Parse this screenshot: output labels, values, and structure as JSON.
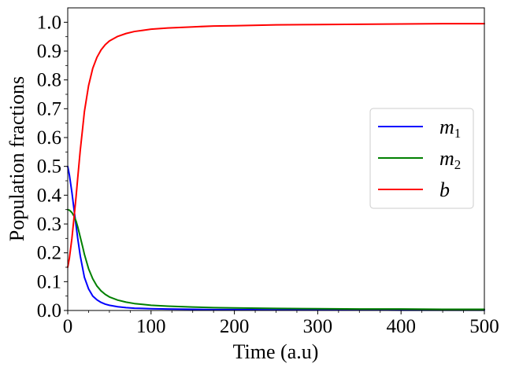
{
  "chart_data": {
    "type": "line",
    "title": "",
    "xlabel": "Time (a.u)",
    "ylabel": "Population fractions",
    "xlim": [
      0,
      500
    ],
    "ylim": [
      0,
      1.05
    ],
    "xticks": [
      0,
      100,
      200,
      300,
      400,
      500
    ],
    "xtick_labels": [
      "0",
      "100",
      "200",
      "300",
      "400",
      "500"
    ],
    "yticks": [
      0.0,
      0.1,
      0.2,
      0.3,
      0.4,
      0.5,
      0.6,
      0.7,
      0.8,
      0.9,
      1.0
    ],
    "ytick_labels": [
      "0.0",
      "0.1",
      "0.2",
      "0.3",
      "0.4",
      "0.5",
      "0.6",
      "0.7",
      "0.8",
      "0.9",
      "1.0"
    ],
    "grid": false,
    "legend_position": "center-right",
    "x": [
      0,
      2,
      5,
      8,
      10,
      12,
      15,
      18,
      20,
      25,
      30,
      35,
      40,
      45,
      50,
      60,
      70,
      80,
      90,
      100,
      120,
      150,
      175,
      200,
      250,
      300,
      350,
      400,
      450,
      500
    ],
    "series": [
      {
        "name": "m1",
        "legend_base": "m",
        "legend_sub": "1",
        "color": "#0000ff",
        "values": [
          0.5,
          0.47,
          0.41,
          0.34,
          0.295,
          0.25,
          0.19,
          0.145,
          0.115,
          0.075,
          0.05,
          0.037,
          0.028,
          0.022,
          0.018,
          0.013,
          0.01,
          0.008,
          0.007,
          0.006,
          0.005,
          0.004,
          0.003,
          0.003,
          0.002,
          0.002,
          0.002,
          0.001,
          0.001,
          0.001
        ]
      },
      {
        "name": "m2",
        "legend_base": "m",
        "legend_sub": "2",
        "color": "#008000",
        "values": [
          0.35,
          0.348,
          0.34,
          0.325,
          0.31,
          0.29,
          0.255,
          0.22,
          0.195,
          0.145,
          0.11,
          0.085,
          0.068,
          0.056,
          0.047,
          0.036,
          0.029,
          0.024,
          0.021,
          0.018,
          0.015,
          0.012,
          0.01,
          0.009,
          0.007,
          0.006,
          0.005,
          0.005,
          0.004,
          0.004
        ]
      },
      {
        "name": "b",
        "legend_base": "b",
        "legend_sub": "",
        "color": "#ff0000",
        "values": [
          0.15,
          0.182,
          0.25,
          0.335,
          0.395,
          0.46,
          0.555,
          0.635,
          0.69,
          0.78,
          0.84,
          0.878,
          0.904,
          0.922,
          0.935,
          0.951,
          0.961,
          0.968,
          0.972,
          0.976,
          0.98,
          0.984,
          0.987,
          0.988,
          0.991,
          0.992,
          0.993,
          0.994,
          0.995,
          0.995
        ]
      }
    ]
  }
}
